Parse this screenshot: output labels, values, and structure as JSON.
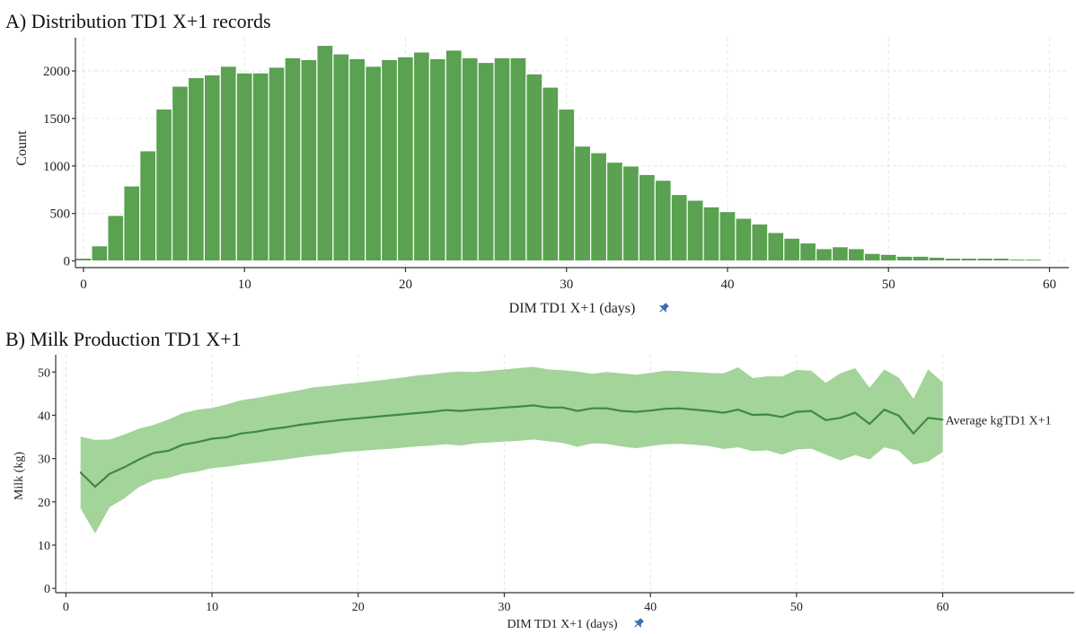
{
  "colors": {
    "bar": "#5aa151",
    "band": "#a3d49a",
    "line": "#3f8a3b",
    "pin": "#3a6fb0"
  },
  "pin_icon": "pushpin-icon",
  "chart_data": [
    {
      "type": "bar",
      "title": "A) Distribution TD1 X+1 records",
      "xlabel": "DIM TD1 X+1 (days)",
      "ylabel": "Count",
      "xlim": [
        -0.5,
        61.2
      ],
      "ylim": [
        -70,
        2350
      ],
      "grid": true,
      "x_ticks": [
        0,
        10,
        20,
        30,
        40,
        50,
        60
      ],
      "y_ticks": [
        0,
        500,
        1000,
        1500,
        2000
      ],
      "bins": [
        0,
        1,
        2,
        3,
        4,
        5,
        6,
        7,
        8,
        9,
        10,
        11,
        12,
        13,
        14,
        15,
        16,
        17,
        18,
        19,
        20,
        21,
        22,
        23,
        24,
        25,
        26,
        27,
        28,
        29,
        30,
        31,
        32,
        33,
        34,
        35,
        36,
        37,
        38,
        39,
        40,
        41,
        42,
        43,
        44,
        45,
        46,
        47,
        48,
        49,
        50,
        51,
        52,
        53,
        54,
        55,
        56,
        57,
        58,
        59,
        60
      ],
      "values": [
        30,
        160,
        480,
        790,
        1160,
        1600,
        1840,
        1930,
        1960,
        2050,
        1980,
        1980,
        2040,
        2140,
        2120,
        2270,
        2180,
        2130,
        2050,
        2120,
        2150,
        2200,
        2130,
        2220,
        2140,
        2090,
        2140,
        2140,
        1970,
        1830,
        1600,
        1210,
        1140,
        1040,
        1000,
        910,
        850,
        700,
        640,
        570,
        520,
        450,
        390,
        300,
        240,
        190,
        130,
        150,
        130,
        80,
        70,
        50,
        50,
        40,
        30,
        30,
        30,
        30,
        20,
        20,
        10
      ]
    },
    {
      "type": "area",
      "title": "B) Milk Production TD1 X+1",
      "xlabel": "DIM TD1 X+1 (days)",
      "ylabel": "Milk (kg)",
      "xlim": [
        -0.7,
        69
      ],
      "ylim": [
        -1,
        54
      ],
      "grid": true,
      "x_ticks": [
        0,
        10,
        20,
        30,
        40,
        50,
        60
      ],
      "y_ticks": [
        0,
        10,
        20,
        30,
        40,
        50
      ],
      "series": [
        {
          "name": "Average kgTD1 X+1",
          "x": [
            1,
            2,
            3,
            4,
            5,
            6,
            7,
            8,
            9,
            10,
            11,
            12,
            13,
            14,
            15,
            16,
            17,
            18,
            19,
            20,
            21,
            22,
            23,
            24,
            25,
            26,
            27,
            28,
            29,
            30,
            31,
            32,
            33,
            34,
            35,
            36,
            37,
            38,
            39,
            40,
            41,
            42,
            43,
            44,
            45,
            46,
            47,
            48,
            49,
            50,
            51,
            52,
            53,
            54,
            55,
            56,
            57,
            58,
            59,
            60
          ],
          "mean": [
            26.8,
            23.5,
            26.5,
            28.0,
            29.8,
            31.3,
            31.8,
            33.2,
            33.8,
            34.6,
            34.9,
            35.8,
            36.2,
            36.8,
            37.2,
            37.8,
            38.2,
            38.6,
            39.0,
            39.3,
            39.6,
            39.9,
            40.2,
            40.5,
            40.8,
            41.2,
            41.0,
            41.3,
            41.5,
            41.8,
            42.0,
            42.3,
            41.8,
            41.8,
            41.0,
            41.6,
            41.6,
            41.0,
            40.8,
            41.1,
            41.5,
            41.6,
            41.3,
            41.0,
            40.6,
            41.3,
            40.1,
            40.2,
            39.6,
            40.8,
            41.0,
            38.9,
            39.4,
            40.6,
            38.0,
            41.3,
            39.9,
            35.8,
            39.4,
            39.0
          ],
          "upper": [
            35.1,
            34.3,
            34.4,
            35.6,
            36.9,
            37.8,
            39.0,
            40.5,
            41.3,
            41.7,
            42.5,
            43.5,
            44.0,
            44.6,
            45.2,
            45.8,
            46.5,
            46.8,
            47.2,
            47.5,
            47.9,
            48.3,
            48.7,
            49.2,
            49.5,
            49.9,
            50.1,
            50.0,
            50.3,
            50.6,
            50.9,
            51.2,
            50.6,
            50.4,
            50.1,
            49.6,
            50.0,
            49.7,
            49.4,
            49.8,
            50.3,
            50.2,
            50.0,
            49.8,
            49.7,
            51.1,
            48.6,
            49.0,
            49.0,
            50.5,
            50.3,
            47.5,
            49.7,
            50.9,
            46.4,
            50.6,
            48.7,
            43.8,
            50.6,
            47.6
          ],
          "lower": [
            18.5,
            12.7,
            18.8,
            20.8,
            23.4,
            25.0,
            25.5,
            26.5,
            27.0,
            27.8,
            28.1,
            28.6,
            29.0,
            29.4,
            29.8,
            30.3,
            30.7,
            31.0,
            31.5,
            31.7,
            32.0,
            32.2,
            32.5,
            32.8,
            33.0,
            33.3,
            33.0,
            33.5,
            33.7,
            33.9,
            34.1,
            34.4,
            34.0,
            33.6,
            32.7,
            33.5,
            33.4,
            32.8,
            32.4,
            32.9,
            33.3,
            33.4,
            33.2,
            32.9,
            32.2,
            32.6,
            31.7,
            31.9,
            30.9,
            32.1,
            32.3,
            30.9,
            29.6,
            30.8,
            29.8,
            32.6,
            31.8,
            28.6,
            29.3,
            31.5
          ]
        }
      ]
    }
  ]
}
